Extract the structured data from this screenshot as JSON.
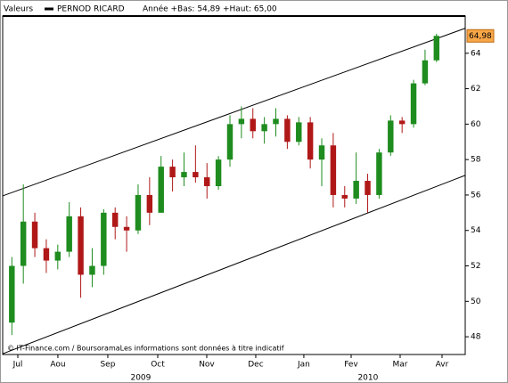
{
  "chart_data": {
    "type": "candlestick",
    "header_label": "Valeurs",
    "header_info": "Année +Bas: 54,89 +Haut: 65,00",
    "footer": "© IT-Finance.com / BoursoramaLes informations sont données à titre indicatif",
    "categories": [
      null,
      null,
      null,
      null,
      null,
      null,
      null,
      null,
      null,
      null,
      null,
      null,
      null,
      null,
      null,
      null,
      null,
      null,
      null,
      null,
      null,
      null,
      null,
      null,
      null,
      null,
      null,
      null,
      null,
      null,
      null,
      null,
      null,
      null,
      null,
      null,
      null,
      null
    ],
    "series": [
      {
        "name": "PERNOD RICARD",
        "color": "#000000",
        "up_color": "#1e8c1e",
        "down_color": "#b01818",
        "open": [
          48.8,
          52,
          54.5,
          53,
          52.3,
          52.8,
          54.8,
          51.5,
          52,
          55,
          54.2,
          54,
          56,
          55,
          57.6,
          57,
          57.3,
          57,
          56.5,
          58,
          60,
          60.3,
          59.6,
          60,
          60.3,
          59,
          60.1,
          58,
          58.8,
          56,
          55.8,
          56.8,
          56,
          58.4,
          60.2,
          60,
          62.3,
          63.6
        ],
        "high": [
          52.5,
          56.6,
          55,
          53.5,
          53.2,
          55.6,
          55.3,
          53,
          55.2,
          55.3,
          54.8,
          56.6,
          57,
          58.2,
          58,
          58.4,
          58.8,
          57.8,
          58.2,
          60.5,
          61,
          60.9,
          60.4,
          60.9,
          60.5,
          60.4,
          60.4,
          59.2,
          59.5,
          56.5,
          58.4,
          57.2,
          58.6,
          60.5,
          60.4,
          62.5,
          64.2,
          65.1
        ],
        "low": [
          48.1,
          51,
          52.5,
          51.6,
          51.8,
          52.5,
          50.2,
          50.8,
          51.5,
          53.5,
          52.8,
          53.8,
          54.3,
          55,
          56.2,
          56.5,
          56.7,
          55.8,
          56.3,
          57.6,
          59.2,
          59.2,
          58.9,
          59.3,
          58.6,
          58.8,
          57.5,
          56.5,
          55.3,
          55.3,
          55.5,
          55,
          55.8,
          58.2,
          59.5,
          59.8,
          62.2,
          63.5
        ],
        "close": [
          52,
          54.5,
          53,
          52.3,
          52.8,
          54.8,
          51.5,
          52,
          55,
          54.2,
          54,
          56,
          55,
          57.6,
          57,
          57.3,
          57,
          56.5,
          58,
          60,
          60.3,
          59.6,
          60,
          60.3,
          59,
          60.1,
          58,
          58.8,
          56,
          55.8,
          56.8,
          56,
          58.4,
          60.2,
          60,
          62.3,
          63.6,
          64.98
        ]
      }
    ],
    "last_price": {
      "value": 64.98,
      "label": "64,98"
    },
    "trendlines": [
      {
        "x": [
          -0.8,
          39.5
        ],
        "y": [
          55.95,
          65.41
        ]
      },
      {
        "x": [
          -0.8,
          39.5
        ],
        "y": [
          47.04,
          57.11
        ]
      }
    ],
    "xlim": [
      -0.8,
      39.5
    ],
    "xticks": [
      {
        "value": 0.52,
        "label": "Jul"
      },
      {
        "value": 4.01,
        "label": "Aou"
      },
      {
        "value": 8.36,
        "label": "Sep"
      },
      {
        "value": 12.71,
        "label": "Oct"
      },
      {
        "value": 16.98,
        "label": "Nov"
      },
      {
        "value": 21.25,
        "label": "Dec"
      },
      {
        "value": 25.44,
        "label": "Jan"
      },
      {
        "value": 29.56,
        "label": "Fev"
      },
      {
        "value": 33.83,
        "label": "Mar"
      },
      {
        "value": 37.48,
        "label": "Avr"
      }
    ],
    "year_ticks": [
      {
        "value": 11.23,
        "label": "2009"
      },
      {
        "value": 31.03,
        "label": "2010"
      }
    ],
    "ylim": [
      47,
      66.1
    ],
    "yticks": [
      48,
      50,
      52,
      54,
      56,
      58,
      60,
      62,
      64
    ]
  }
}
